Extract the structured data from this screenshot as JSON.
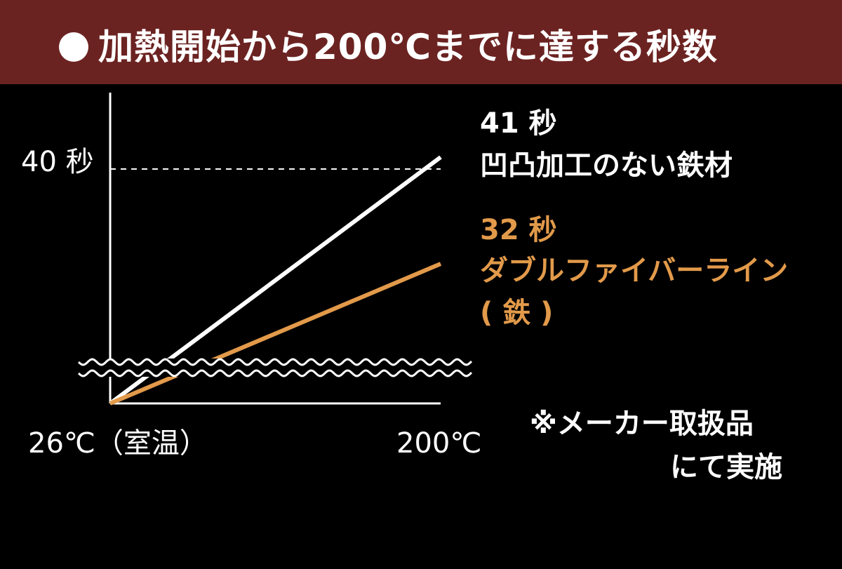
{
  "header": {
    "title": "加熱開始から200℃までに達する秒数"
  },
  "chart_data": {
    "type": "line",
    "title": "加熱開始から200℃までに達する秒数",
    "x": [
      "26℃（室温）",
      "200℃"
    ],
    "yticks": [
      {
        "value": 40,
        "label": "40 秒"
      }
    ],
    "ylim": [
      0,
      45
    ],
    "series": [
      {
        "name": "凹凸加工のない鉄材",
        "value_label": "41 秒",
        "values": [
          0,
          41
        ],
        "color": "#ffffff"
      },
      {
        "name": "ダブルファイバーライン（鉄）",
        "value_label": "32 秒",
        "values": [
          0,
          32
        ],
        "color": "#e29a4a"
      }
    ],
    "axis_break": true,
    "reference_line": 40
  },
  "labels": {
    "x_start": "26℃（室温）",
    "x_end": "200℃",
    "y_tick": "40 秒",
    "iron_time": "41 秒",
    "iron_name": "凹凸加工のない鉄材",
    "dfl_time": "32 秒",
    "dfl_name_line1": "ダブルファイバーライン",
    "dfl_name_line2": "( 鉄 )",
    "note_line1": "※メーカー取扱品",
    "note_line2": "にて実施"
  }
}
